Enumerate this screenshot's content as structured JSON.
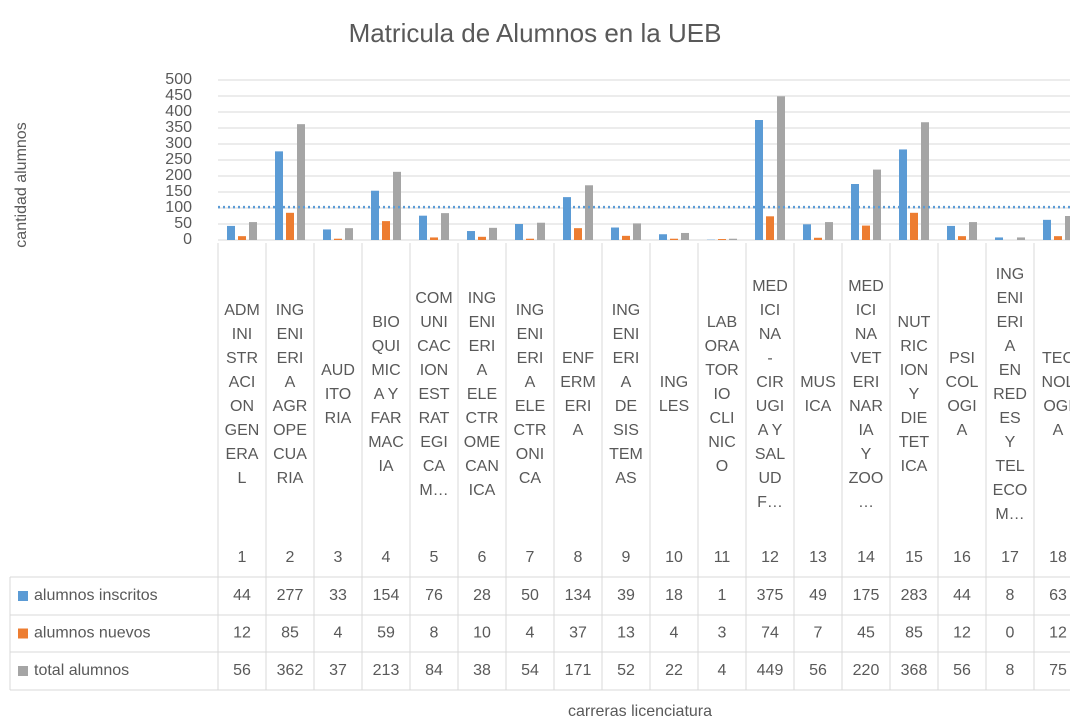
{
  "chart_data": {
    "type": "bar",
    "title": "Matricula de Alumnos en la UEB",
    "y_label": "cantidad alumnos",
    "x_label": "carreras licenciatura",
    "categories": [
      "ADMINISTRACION GENERAL",
      "INGENIERIA AGROPECUARIA",
      "AUDITORIA",
      "BIOQUIMICA Y FARMACIA",
      "COMUNICACION ESTRATEGICA M…",
      "INGENIERIA ELECTROMECANICA",
      "INGENIERIA ELECTRONICA",
      "ENFERMERIA",
      "INGENIERIA DE SISTEMAS",
      "INGLES",
      "LABORATORIO CLINICO",
      "MEDICINA - CIRUGIA Y SALUD F…",
      "MUSICA",
      "MEDICINA VETERINARIA Y ZOO…",
      "NUTRICION Y DIETETICA",
      "PSICOLOGIA",
      "INGENIERIA EN REDES Y TELECOM…",
      "TECNOLOGIA"
    ],
    "category_numbers": [
      1,
      2,
      3,
      4,
      5,
      6,
      7,
      8,
      9,
      10,
      11,
      12,
      13,
      14,
      15,
      16,
      17,
      18
    ],
    "series": [
      {
        "name": "alumnos inscritos",
        "color": "#5b9bd5",
        "values": [
          44,
          277,
          33,
          154,
          76,
          28,
          50,
          134,
          39,
          18,
          1,
          375,
          49,
          175,
          283,
          44,
          8,
          63
        ]
      },
      {
        "name": "alumnos nuevos",
        "color": "#ed7d31",
        "values": [
          12,
          85,
          4,
          59,
          8,
          10,
          4,
          37,
          13,
          4,
          3,
          74,
          7,
          45,
          85,
          12,
          0,
          12
        ]
      },
      {
        "name": "total alumnos",
        "color": "#a5a5a5",
        "values": [
          56,
          362,
          37,
          213,
          84,
          38,
          54,
          171,
          52,
          22,
          4,
          449,
          56,
          220,
          368,
          56,
          8,
          75
        ]
      }
    ],
    "ylim": [
      0,
      500
    ],
    "yticks": [
      0,
      50,
      100,
      150,
      200,
      250,
      300,
      350,
      400,
      450,
      500
    ],
    "grid": true
  }
}
